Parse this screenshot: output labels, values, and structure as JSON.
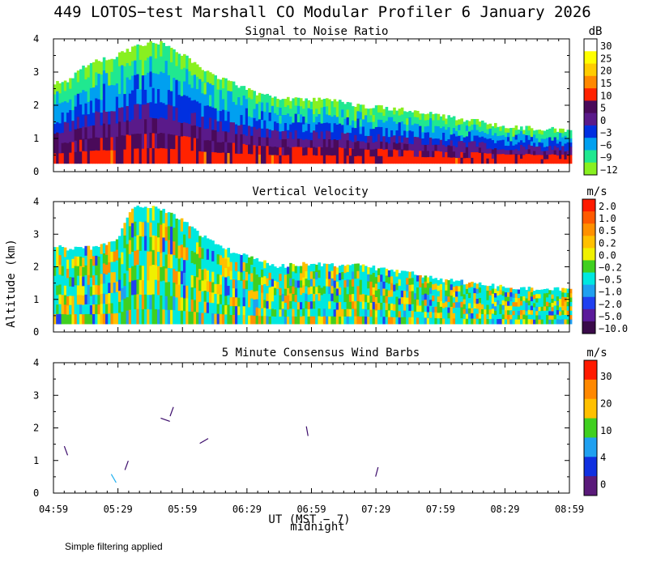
{
  "header": {
    "title": "449 LOTOS−test Marshall CO Modular Profiler  6 January 2026"
  },
  "axes": {
    "ylabel": "Altitude (km)",
    "xlabel": "UT  (MST − 7)",
    "midnight_label": "midnight",
    "x_ticks": [
      "04:59",
      "05:29",
      "05:59",
      "06:29",
      "06:59",
      "07:29",
      "07:59",
      "08:29",
      "08:59"
    ],
    "y_ticks": [
      "0",
      "1",
      "2",
      "3",
      "4"
    ],
    "xlim_ut_hours": [
      4.983,
      8.983
    ],
    "ylim_km": [
      0,
      4
    ]
  },
  "footer": {
    "note": "Simple filtering applied"
  },
  "chart_data": [
    {
      "type": "heatmap",
      "title": "Signal to Noise Ratio",
      "units": "dB",
      "colorbar": {
        "labels": [
          "30",
          "25",
          "20",
          "15",
          "10",
          "5",
          "0",
          "−3",
          "−6",
          "−9",
          "−12"
        ],
        "values": [
          30,
          25,
          20,
          15,
          10,
          5,
          0,
          -3,
          -6,
          -9,
          -12
        ],
        "colors": [
          "#ffffff",
          "#ffff00",
          "#ffcc00",
          "#ff8800",
          "#ff2200",
          "#4a0a5a",
          "#5a1a8a",
          "#0030e0",
          "#00a0f0",
          "#20e890",
          "#88f020"
        ]
      },
      "data_top_km": [
        [
          4.98,
          2.7
        ],
        [
          5.1,
          2.75
        ],
        [
          5.25,
          3.3
        ],
        [
          5.45,
          3.45
        ],
        [
          5.6,
          3.75
        ],
        [
          5.75,
          3.95
        ],
        [
          5.9,
          3.75
        ],
        [
          6.05,
          3.3
        ],
        [
          6.2,
          2.95
        ],
        [
          6.4,
          2.6
        ],
        [
          6.55,
          2.35
        ],
        [
          6.75,
          2.2
        ],
        [
          6.9,
          2.15
        ],
        [
          7.1,
          2.2
        ],
        [
          7.3,
          2.0
        ],
        [
          7.5,
          1.95
        ],
        [
          7.7,
          1.85
        ],
        [
          7.9,
          1.75
        ],
        [
          8.1,
          1.6
        ],
        [
          8.3,
          1.5
        ],
        [
          8.5,
          1.35
        ],
        [
          8.7,
          1.3
        ],
        [
          8.98,
          1.25
        ]
      ],
      "data_bottom_km": 0.25
    },
    {
      "type": "heatmap",
      "title": "Vertical Velocity",
      "units": "m/s",
      "colorbar": {
        "labels": [
          "2.0",
          "1.0",
          "0.5",
          "0.2",
          "0.0",
          "−0.2",
          "−0.5",
          "−1.0",
          "−2.0",
          "−5.0",
          "−10.0"
        ],
        "values": [
          2.0,
          1.0,
          0.5,
          0.2,
          0.0,
          -0.2,
          -0.5,
          -1.0,
          -2.0,
          -5.0,
          -10.0
        ],
        "colors": [
          "#ff1a00",
          "#ff5a00",
          "#ff9000",
          "#ffc000",
          "#f0f000",
          "#40d020",
          "#00e8e0",
          "#20a0f0",
          "#2040f0",
          "#5a1a9a",
          "#3a0a4a"
        ]
      },
      "data_top_km": [
        [
          4.98,
          2.6
        ],
        [
          5.15,
          2.55
        ],
        [
          5.3,
          2.6
        ],
        [
          5.45,
          2.75
        ],
        [
          5.6,
          3.9
        ],
        [
          5.75,
          3.85
        ],
        [
          5.95,
          3.5
        ],
        [
          6.1,
          3.0
        ],
        [
          6.3,
          2.55
        ],
        [
          6.5,
          2.3
        ],
        [
          6.7,
          2.0
        ],
        [
          6.9,
          2.1
        ],
        [
          7.1,
          2.05
        ],
        [
          7.3,
          2.05
        ],
        [
          7.5,
          1.95
        ],
        [
          7.7,
          1.85
        ],
        [
          7.9,
          1.65
        ],
        [
          8.1,
          1.55
        ],
        [
          8.3,
          1.45
        ],
        [
          8.5,
          1.35
        ],
        [
          8.98,
          1.3
        ]
      ],
      "data_bottom_km": 0.25
    },
    {
      "type": "scatter",
      "title": "5 Minute Consensus Wind Barbs",
      "units": "m/s",
      "colorbar": {
        "labels": [
          "30",
          "20",
          "10",
          "4",
          "0"
        ],
        "values": [
          30,
          20,
          10,
          4,
          0
        ],
        "colors": [
          "#ff1a00",
          "#ff8800",
          "#ffc000",
          "#40d020",
          "#20a0f0",
          "#1030e0",
          "#5a1a7a"
        ]
      },
      "barbs": [
        {
          "time": 5.08,
          "km": 1.3,
          "speed": 1,
          "dir": 340
        },
        {
          "time": 5.45,
          "km": 0.45,
          "speed": 3,
          "dir": 150
        },
        {
          "time": 5.55,
          "km": 0.85,
          "speed": 1,
          "dir": 20
        },
        {
          "time": 5.9,
          "km": 2.5,
          "speed": 1,
          "dir": 20
        },
        {
          "time": 5.85,
          "km": 2.25,
          "speed": 1,
          "dir": 110
        },
        {
          "time": 6.15,
          "km": 1.6,
          "speed": 1,
          "dir": 60
        },
        {
          "time": 6.95,
          "km": 1.9,
          "speed": 1,
          "dir": 350
        },
        {
          "time": 7.49,
          "km": 0.65,
          "speed": 1,
          "dir": 15
        }
      ]
    }
  ]
}
